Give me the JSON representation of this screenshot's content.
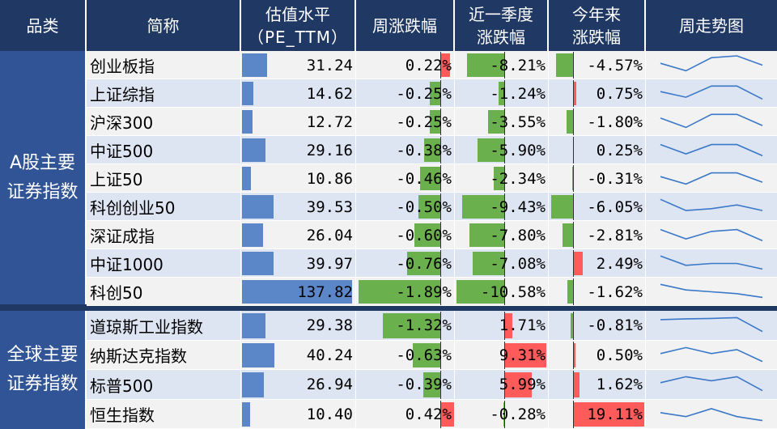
{
  "header": {
    "category": "品类",
    "name": "简称",
    "pe_line1": "估值水平",
    "pe_line2": "（PE_TTM）",
    "week_chg": "周涨跌幅",
    "qtr_chg_line1": "近一季度",
    "qtr_chg_line2": "涨跌幅",
    "ytd_chg_line1": "今年来",
    "ytd_chg_line2": "涨跌幅",
    "trend": "周走势图"
  },
  "groups": [
    {
      "label": "A股主要证券指数"
    },
    {
      "label": "全球主要证券指数"
    }
  ],
  "colors": {
    "header_bg": "#203864",
    "group_bg": "#305496",
    "row_bg_a": "#dde4f2",
    "row_bg_b": "#f2f2f2",
    "pe_bar": "#5b87c9",
    "positive": "#ff5b5b",
    "negative": "#6ab04c",
    "spark": "#3a78c8"
  },
  "rows": [
    {
      "name": "创业板指",
      "pe": "31.24",
      "pe_val": 31.24,
      "week": "0.22%",
      "week_val": 0.22,
      "qtr": "-8.21%",
      "qtr_val": -8.21,
      "ytd": "-4.57%",
      "ytd_val": -4.57,
      "trend": [
        3.0,
        1.0,
        4.5,
        5.0,
        2.5
      ]
    },
    {
      "name": "上证综指",
      "pe": "14.62",
      "pe_val": 14.62,
      "week": "-0.25%",
      "week_val": -0.25,
      "qtr": "-1.24%",
      "qtr_val": -1.24,
      "ytd": "0.75%",
      "ytd_val": 0.75,
      "trend": [
        3.0,
        1.5,
        4.5,
        4.5,
        1.0
      ]
    },
    {
      "name": "沪深300",
      "pe": "12.72",
      "pe_val": 12.72,
      "week": "-0.25%",
      "week_val": -0.25,
      "qtr": "-3.55%",
      "qtr_val": -3.55,
      "ytd": "-1.80%",
      "ytd_val": -1.8,
      "trend": [
        3.5,
        1.0,
        4.5,
        4.5,
        1.5
      ]
    },
    {
      "name": "中证500",
      "pe": "29.16",
      "pe_val": 29.16,
      "week": "-0.38%",
      "week_val": -0.38,
      "qtr": "-5.90%",
      "qtr_val": -5.9,
      "ytd": "0.25%",
      "ytd_val": 0.25,
      "trend": [
        4.0,
        1.5,
        4.0,
        4.0,
        1.0
      ]
    },
    {
      "name": "上证50",
      "pe": "10.86",
      "pe_val": 10.86,
      "week": "-0.46%",
      "week_val": -0.46,
      "qtr": "-2.34%",
      "qtr_val": -2.34,
      "ytd": "-0.31%",
      "ytd_val": -0.31,
      "trend": [
        3.0,
        1.0,
        4.0,
        4.0,
        1.5
      ]
    },
    {
      "name": "科创创业50",
      "pe": "39.53",
      "pe_val": 39.53,
      "week": "-0.50%",
      "week_val": -0.5,
      "qtr": "-9.43%",
      "qtr_val": -9.43,
      "ytd": "-6.05%",
      "ytd_val": -6.05,
      "trend": [
        4.5,
        1.5,
        2.0,
        3.0,
        1.5
      ]
    },
    {
      "name": "深证成指",
      "pe": "26.04",
      "pe_val": 26.04,
      "week": "-0.60%",
      "week_val": -0.6,
      "qtr": "-7.80%",
      "qtr_val": -7.8,
      "ytd": "-2.81%",
      "ytd_val": -2.81,
      "trend": [
        4.0,
        1.5,
        3.5,
        4.0,
        1.0
      ]
    },
    {
      "name": "中证1000",
      "pe": "39.97",
      "pe_val": 39.97,
      "week": "-0.76%",
      "week_val": -0.76,
      "qtr": "-7.08%",
      "qtr_val": -7.08,
      "ytd": "2.49%",
      "ytd_val": 2.49,
      "trend": [
        4.5,
        2.0,
        2.5,
        2.5,
        1.0
      ]
    },
    {
      "name": "科创50",
      "pe": "137.82",
      "pe_val": 137.82,
      "week": "-1.89%",
      "week_val": -1.89,
      "qtr": "-10.58%",
      "qtr_val": -10.58,
      "ytd": "-1.62%",
      "ytd_val": -1.62,
      "trend": [
        4.5,
        3.0,
        2.5,
        2.0,
        1.0
      ]
    },
    {
      "name": "道琼斯工业指数",
      "pe": "29.38",
      "pe_val": 29.38,
      "week": "-1.32%",
      "week_val": -1.32,
      "qtr": "1.71%",
      "qtr_val": 1.71,
      "ytd": "-0.81%",
      "ytd_val": -0.81,
      "trend": [
        4.0,
        4.2,
        4.3,
        4.5,
        1.0
      ]
    },
    {
      "name": "纳斯达克指数",
      "pe": "40.24",
      "pe_val": 40.24,
      "week": "-0.63%",
      "week_val": -0.63,
      "qtr": "9.31%",
      "qtr_val": 9.31,
      "ytd": "0.50%",
      "ytd_val": 0.5,
      "trend": [
        3.0,
        4.5,
        3.0,
        4.0,
        1.0
      ]
    },
    {
      "name": "标普500",
      "pe": "26.94",
      "pe_val": 26.94,
      "week": "-0.39%",
      "week_val": -0.39,
      "qtr": "5.99%",
      "qtr_val": 5.99,
      "ytd": "1.62%",
      "ytd_val": 1.62,
      "trend": [
        3.0,
        4.5,
        3.5,
        4.5,
        1.0
      ]
    },
    {
      "name": "恒生指数",
      "pe": "10.40",
      "pe_val": 10.4,
      "week": "0.42%",
      "week_val": 0.42,
      "qtr": "-0.28%",
      "qtr_val": -0.28,
      "ytd": "19.11%",
      "ytd_val": 19.11,
      "trend": [
        3.0,
        2.0,
        4.0,
        2.0,
        1.0
      ]
    }
  ]
}
